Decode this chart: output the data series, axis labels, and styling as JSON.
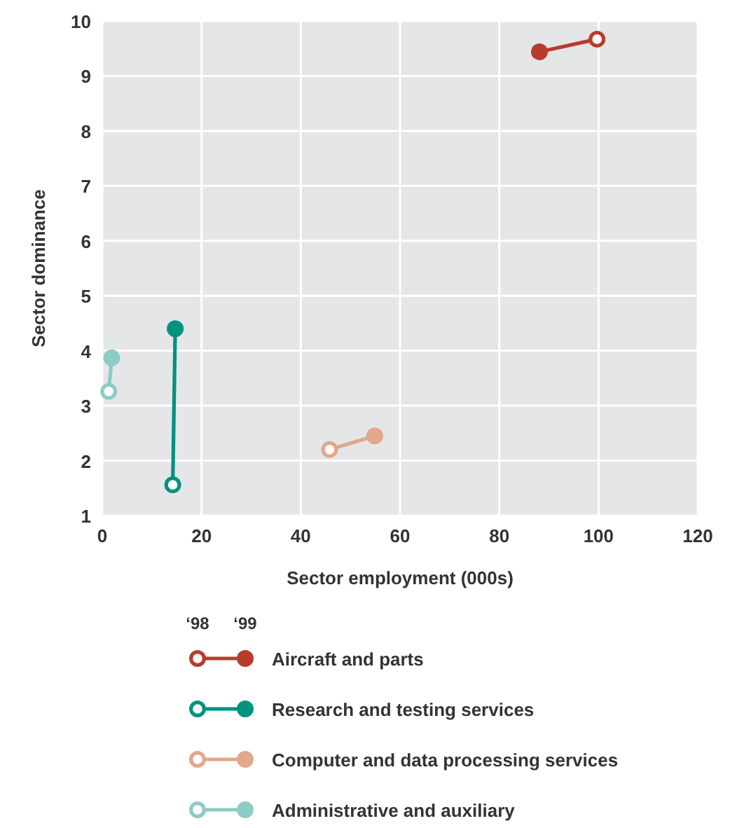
{
  "chart_data": {
    "type": "line",
    "xlabel": "Sector employment (000s)",
    "ylabel": "Sector dominance",
    "xlim": [
      0,
      120
    ],
    "xticks": [
      0,
      20,
      40,
      60,
      80,
      100,
      120
    ],
    "ylim": [
      1,
      10
    ],
    "yticks": [
      1,
      2,
      3,
      4,
      5,
      6,
      7,
      8,
      9,
      10
    ],
    "grid": true,
    "legend": "bottom",
    "marker": "circle",
    "line_style": "solid",
    "annotations": [
      "‘98",
      "‘99"
    ],
    "series": [
      {
        "name": "Aircraft and parts",
        "color": "#b83c2c",
        "x": [
          99.7,
          88.1
        ],
        "values": [
          9.67,
          9.44
        ]
      },
      {
        "name": "Research and testing services",
        "color": "#00927f",
        "x": [
          14.2,
          14.7
        ],
        "values": [
          1.56,
          4.4
        ]
      },
      {
        "name": "Computer and data processing services",
        "color": "#e0a88c",
        "x": [
          45.8,
          54.9
        ],
        "values": [
          2.2,
          2.45
        ]
      },
      {
        "name": "Administrative and auxiliary",
        "color": "#8ecbc6",
        "x": [
          1.3,
          1.9
        ],
        "values": [
          3.26,
          3.87
        ]
      }
    ]
  }
}
